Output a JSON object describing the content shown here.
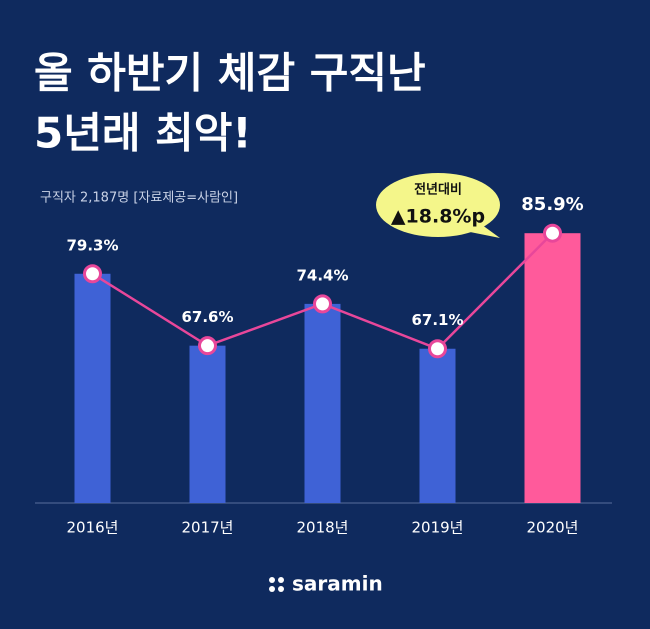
{
  "chart_data": {
    "type": "bar-line",
    "title_lines": [
      "올 하반기 체감 구직난",
      "5년래 최악!"
    ],
    "subtitle": "구직자 2,187명 [자료제공=사람인]",
    "categories": [
      "2016년",
      "2017년",
      "2018년",
      "2019년",
      "2020년"
    ],
    "values": [
      79.3,
      67.6,
      74.4,
      67.1,
      85.9
    ],
    "value_labels": [
      "79.3%",
      "67.6%",
      "74.4%",
      "67.1%",
      "85.9%"
    ],
    "bar_colors": [
      "#3f62d6",
      "#3f62d6",
      "#3f62d6",
      "#3f62d6",
      "#ff5a9b"
    ],
    "line_color": "#e8479a",
    "ylim": [
      42,
      90
    ],
    "annotation": {
      "title": "전년대비",
      "text": "▲18.8%p"
    },
    "brand": "saramin"
  }
}
